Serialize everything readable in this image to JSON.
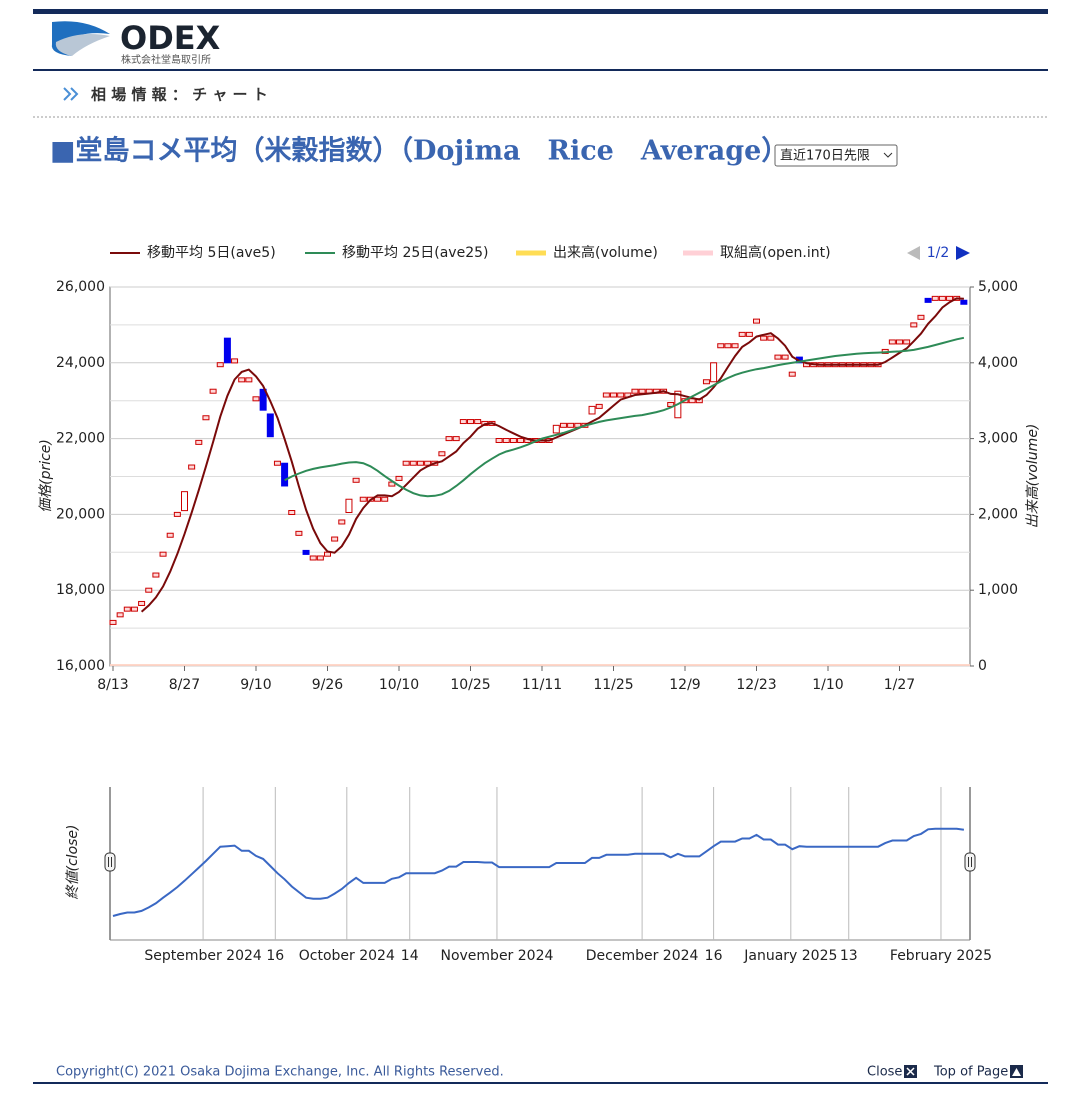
{
  "header": {
    "logo": "ODEX",
    "company": "株式会社堂島取引所"
  },
  "nav": {
    "breadcrumb": "相 場 情 報 ： チ ャ ー ト"
  },
  "page": {
    "title": "■堂島コメ平均（米穀指数）（Dojima　Rice　Average）",
    "selector": "直近170日先限"
  },
  "chart_data": [
    {
      "type": "candlestick",
      "pager": "1/2",
      "ylabel": "価格(price)",
      "y2label": "出来高(volume)",
      "up_color": "#cc0000",
      "down_color": "#0000ee",
      "categories": [
        "8/13",
        null,
        null,
        null,
        null,
        null,
        null,
        null,
        null,
        null,
        "8/27",
        null,
        null,
        null,
        null,
        null,
        null,
        null,
        null,
        null,
        "9/10",
        null,
        null,
        null,
        null,
        null,
        null,
        null,
        null,
        null,
        "9/26",
        null,
        null,
        null,
        null,
        null,
        null,
        null,
        null,
        null,
        "10/10",
        null,
        null,
        null,
        null,
        null,
        null,
        null,
        null,
        null,
        "10/25",
        null,
        null,
        null,
        null,
        null,
        null,
        null,
        null,
        null,
        "11/11",
        null,
        null,
        null,
        null,
        null,
        null,
        null,
        null,
        null,
        "11/25",
        null,
        null,
        null,
        null,
        null,
        null,
        null,
        null,
        null,
        "12/9",
        null,
        null,
        null,
        null,
        null,
        null,
        null,
        null,
        null,
        "12/23",
        null,
        null,
        null,
        null,
        null,
        null,
        null,
        null,
        null,
        "1/10",
        null,
        null,
        null,
        null,
        null,
        null,
        null,
        null,
        null,
        "1/27",
        null,
        null,
        null,
        null,
        null,
        null,
        null,
        null,
        null
      ],
      "open": [
        17150,
        17350,
        17500,
        17500,
        17650,
        18000,
        18400,
        18950,
        19450,
        20000,
        20100,
        21250,
        21900,
        22550,
        23250,
        23950,
        24650,
        24050,
        23550,
        23550,
        23050,
        23300,
        22650,
        21350,
        21350,
        20050,
        19500,
        19050,
        18850,
        18850,
        18950,
        19350,
        19800,
        20050,
        20900,
        20400,
        20400,
        20400,
        20400,
        20800,
        20950,
        21350,
        21350,
        21350,
        21350,
        21350,
        21600,
        22000,
        22000,
        22450,
        22450,
        22450,
        22400,
        22400,
        21950,
        21950,
        21950,
        21950,
        21950,
        21950,
        21950,
        21950,
        22150,
        22350,
        22350,
        22350,
        22350,
        22650,
        22850,
        23150,
        23150,
        23150,
        23150,
        23250,
        23250,
        23250,
        23250,
        23250,
        22900,
        22550,
        23000,
        23000,
        23000,
        23500,
        23500,
        24450,
        24450,
        24450,
        24750,
        24750,
        25100,
        24650,
        24650,
        24150,
        24150,
        23700,
        24150,
        23950,
        23950,
        23950,
        23950,
        23950,
        23950,
        23950,
        23950,
        23950,
        23950,
        23950,
        24300,
        24550,
        24550,
        24550,
        25000,
        25200,
        25700,
        25700,
        25700,
        25700,
        25700,
        25650
      ],
      "close": [
        17150,
        17350,
        17500,
        17500,
        17650,
        18000,
        18400,
        18950,
        19450,
        20000,
        20600,
        21250,
        21900,
        22550,
        23250,
        23950,
        24000,
        24050,
        23550,
        23550,
        23050,
        22750,
        22050,
        21350,
        20750,
        20050,
        19500,
        18950,
        18850,
        18850,
        18950,
        19350,
        19800,
        20400,
        20900,
        20400,
        20400,
        20400,
        20400,
        20800,
        20950,
        21350,
        21350,
        21350,
        21350,
        21350,
        21600,
        22000,
        22000,
        22450,
        22450,
        22450,
        22400,
        22400,
        21950,
        21950,
        21950,
        21950,
        21950,
        21950,
        21950,
        21950,
        22350,
        22350,
        22350,
        22350,
        22350,
        22850,
        22850,
        23150,
        23150,
        23150,
        23150,
        23250,
        23250,
        23250,
        23250,
        23250,
        22900,
        23250,
        23000,
        23000,
        23000,
        23500,
        24000,
        24450,
        24450,
        24450,
        24750,
        24750,
        25100,
        24650,
        24650,
        24150,
        24150,
        23700,
        24000,
        23950,
        23950,
        23950,
        23950,
        23950,
        23950,
        23950,
        23950,
        23950,
        23950,
        23950,
        24300,
        24550,
        24550,
        24550,
        25000,
        25200,
        25650,
        25700,
        25700,
        25700,
        25700,
        25600
      ],
      "series": [
        {
          "name": "移動平均 5日(ave5)",
          "color": "#7a0a0a",
          "values": [
            null,
            null,
            null,
            null,
            17430,
            17600,
            17810,
            18100,
            18490,
            18960,
            19480,
            20050,
            20640,
            21260,
            21910,
            22580,
            23130,
            23560,
            23760,
            23820,
            23640,
            23390,
            22990,
            22550,
            21990,
            21390,
            20740,
            20120,
            19620,
            19240,
            19020,
            18990,
            19160,
            19470,
            19880,
            20170,
            20380,
            20500,
            20500,
            20480,
            20590,
            20780,
            20970,
            21160,
            21270,
            21350,
            21400,
            21530,
            21660,
            21880,
            22050,
            22260,
            22380,
            22410,
            22330,
            22230,
            22140,
            22050,
            21990,
            21950,
            21950,
            21950,
            22030,
            22110,
            22190,
            22270,
            22350,
            22450,
            22550,
            22710,
            22870,
            23030,
            23090,
            23150,
            23170,
            23190,
            23210,
            23250,
            23180,
            23170,
            23120,
            23070,
            23030,
            23150,
            23350,
            23590,
            23890,
            24180,
            24420,
            24540,
            24690,
            24740,
            24780,
            24640,
            24450,
            24160,
            24050,
            23990,
            23960,
            23950,
            23950,
            23950,
            23950,
            23950,
            23950,
            23950,
            23950,
            23950,
            24020,
            24140,
            24260,
            24380,
            24570,
            24770,
            25030,
            25230,
            25460,
            25600,
            25700,
            25690
          ]
        },
        {
          "name": "移動平均 25日(ave25)",
          "color": "#2e8b57",
          "values": [
            null,
            null,
            null,
            null,
            null,
            null,
            null,
            null,
            null,
            null,
            null,
            null,
            null,
            null,
            null,
            null,
            null,
            null,
            null,
            null,
            null,
            null,
            null,
            null,
            20900,
            21000,
            21080,
            21150,
            21200,
            21240,
            21270,
            21300,
            21340,
            21370,
            21380,
            21350,
            21270,
            21150,
            21010,
            20880,
            20760,
            20650,
            20560,
            20500,
            20480,
            20490,
            20530,
            20620,
            20750,
            20900,
            21060,
            21210,
            21350,
            21470,
            21580,
            21660,
            21710,
            21770,
            21840,
            21920,
            22000,
            22050,
            22100,
            22150,
            22210,
            22280,
            22340,
            22390,
            22440,
            22480,
            22510,
            22540,
            22570,
            22600,
            22620,
            22660,
            22700,
            22750,
            22820,
            22910,
            23010,
            23110,
            23210,
            23310,
            23410,
            23510,
            23600,
            23680,
            23740,
            23790,
            23830,
            23860,
            23900,
            23940,
            23970,
            24000,
            24030,
            24060,
            24090,
            24120,
            24150,
            24180,
            24200,
            24220,
            24240,
            24250,
            24260,
            24270,
            24280,
            24290,
            24300,
            24320,
            24340,
            24380,
            24420,
            24470,
            24520,
            24570,
            24620,
            24660
          ]
        },
        {
          "name": "出来高(volume)",
          "color": "#ffdd55",
          "axis": "y2"
        },
        {
          "name": "取組高(open.int)",
          "color": "#ffd0d6",
          "axis": "y2"
        }
      ],
      "ylim": [
        16000,
        26000
      ],
      "yticks": [
        {
          "value": 16000,
          "label": "16,000"
        },
        {
          "value": 18000,
          "label": "18,000"
        },
        {
          "value": 20000,
          "label": "20,000"
        },
        {
          "value": 22000,
          "label": "22,000"
        },
        {
          "value": 24000,
          "label": "24,000"
        },
        {
          "value": 26000,
          "label": "26,000"
        }
      ],
      "minor_yticks": [
        17000,
        19000,
        21000,
        23000,
        25000
      ],
      "y2lim": [
        0,
        5000
      ],
      "y2ticks": [
        0,
        {
          "value": 1000,
          "label": "1,000"
        },
        {
          "value": 2000,
          "label": "2,000"
        },
        {
          "value": 3000,
          "label": "3,000"
        },
        {
          "value": 4000,
          "label": "4,000"
        },
        {
          "value": 5000,
          "label": "5,000"
        }
      ],
      "grid": true
    },
    {
      "type": "line",
      "ylabel": "終値(close)",
      "color": "#3a68c4",
      "ylim": [
        14800,
        29800
      ],
      "xticks": [
        {
          "value": 12.6,
          "label": "September 2024"
        },
        {
          "value": 22.7,
          "label": "16"
        },
        {
          "value": 32.7,
          "label": "October 2024"
        },
        {
          "value": 41.5,
          "label": "14"
        },
        {
          "value": 53.7,
          "label": "November 2024"
        },
        {
          "value": 74,
          "label": "December 2024"
        },
        {
          "value": 84,
          "label": "16"
        },
        {
          "value": 94.8,
          "label": "January 2025"
        },
        {
          "value": 102.9,
          "label": "13"
        },
        {
          "value": 115.8,
          "label": "February 2025"
        }
      ]
    }
  ],
  "footer": {
    "copyright": "Copyright(C) 2021  Osaka Dojima Exchange, Inc. All Rights Reserved.",
    "close": "Close",
    "top": "Top of Page"
  }
}
